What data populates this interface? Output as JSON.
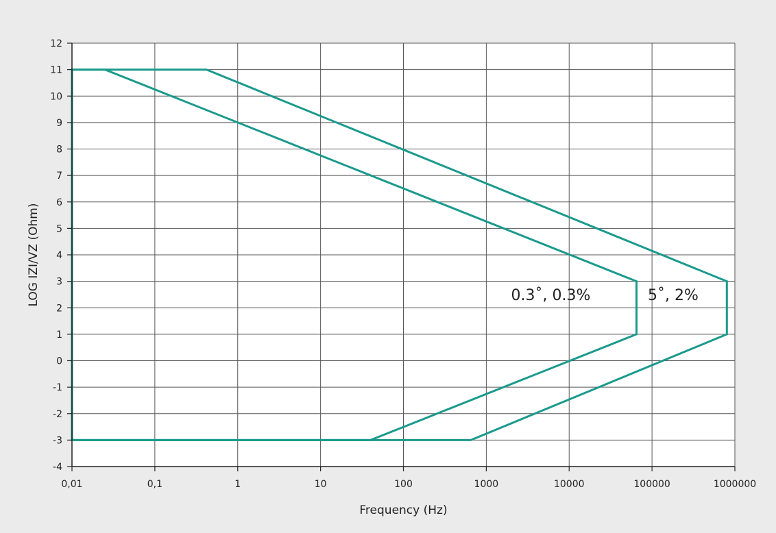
{
  "chart_data": {
    "type": "area",
    "title": "",
    "xlabel": "Frequency (Hz)",
    "ylabel": "LOG IZI/VZ (Ohm)",
    "x_scale": "log",
    "xlim": [
      0.01,
      1000000
    ],
    "ylim": [
      -4,
      12
    ],
    "grid": true,
    "x_tick_values": [
      0.01,
      0.1,
      1,
      10,
      100,
      1000,
      10000,
      100000,
      1000000
    ],
    "x_tick_labels": [
      "0,01",
      "0,1",
      "1",
      "10",
      "100",
      "1000",
      "10000",
      "100000",
      "1000000"
    ],
    "y_tick_values": [
      -4,
      -3,
      -2,
      -1,
      0,
      1,
      2,
      3,
      4,
      5,
      6,
      7,
      8,
      9,
      10,
      11,
      12
    ],
    "y_tick_labels": [
      "-4",
      "-3",
      "-2",
      "-1",
      "0",
      "1",
      "2",
      "3",
      "4",
      "5",
      "6",
      "7",
      "8",
      "9",
      "10",
      "11",
      "12"
    ],
    "line_color": "#1a9a8c",
    "plot_background": "#ffffff",
    "page_background": "#ebebeb",
    "series": [
      {
        "name": "5˚, 2%",
        "points": [
          [
            0.01,
            11
          ],
          [
            0.42,
            11
          ],
          [
            800000,
            3
          ],
          [
            800000,
            1
          ],
          [
            650,
            -3
          ],
          [
            0.01,
            -3
          ]
        ]
      },
      {
        "name": "0.3˚, 0.3%",
        "points": [
          [
            0.01,
            11
          ],
          [
            0.025,
            11
          ],
          [
            65000,
            3
          ],
          [
            65000,
            1
          ],
          [
            40,
            -3
          ],
          [
            0.01,
            -3
          ]
        ]
      }
    ],
    "annotations": [
      {
        "text": "0.3˚, 0.3%",
        "x": 6000,
        "y": 2.5
      },
      {
        "text": "5˚, 2%",
        "x": 180000,
        "y": 2.5
      }
    ]
  }
}
